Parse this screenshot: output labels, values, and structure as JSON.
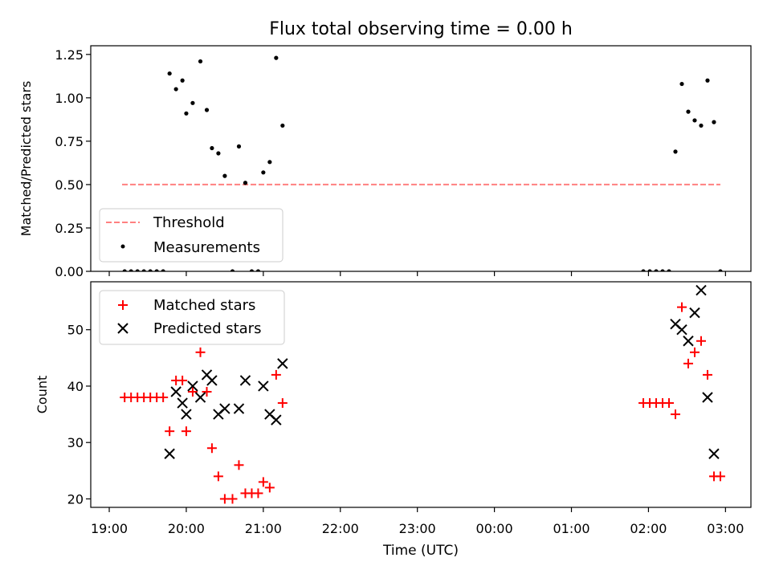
{
  "title": "Flux total observing time = 0.00 h",
  "xlabel": "Time (UTC)",
  "x_ticks": [
    "19:00",
    "20:00",
    "21:00",
    "22:00",
    "23:00",
    "00:00",
    "01:00",
    "02:00",
    "03:00"
  ],
  "chart_data": [
    {
      "type": "scatter",
      "ylabel": "Matched/Predicted stars",
      "ylim": [
        0,
        1.3
      ],
      "y_ticks": [
        "0.00",
        "0.25",
        "0.50",
        "0.75",
        "1.00",
        "1.25"
      ],
      "legend_position": "lower-left",
      "threshold": {
        "name": "Threshold",
        "value": 0.5,
        "x_start": "19:10",
        "x_end": "02:56",
        "color": "#ff8080"
      },
      "series": [
        {
          "name": "Measurements",
          "color": "#000000",
          "marker": "dot",
          "points": [
            [
              "19:12",
              0.0
            ],
            [
              "19:17",
              0.0
            ],
            [
              "19:22",
              0.0
            ],
            [
              "19:27",
              0.0
            ],
            [
              "19:32",
              0.0
            ],
            [
              "19:37",
              0.0
            ],
            [
              "19:42",
              0.0
            ],
            [
              "19:47",
              1.14
            ],
            [
              "19:52",
              1.05
            ],
            [
              "19:57",
              1.1
            ],
            [
              "20:00",
              0.91
            ],
            [
              "20:05",
              0.97
            ],
            [
              "20:11",
              1.21
            ],
            [
              "20:16",
              0.93
            ],
            [
              "20:20",
              0.71
            ],
            [
              "20:25",
              0.68
            ],
            [
              "20:30",
              0.55
            ],
            [
              "20:36",
              0.0
            ],
            [
              "20:41",
              0.72
            ],
            [
              "20:46",
              0.51
            ],
            [
              "20:51",
              0.0
            ],
            [
              "20:56",
              0.0
            ],
            [
              "21:00",
              0.57
            ],
            [
              "21:05",
              0.63
            ],
            [
              "21:10",
              1.23
            ],
            [
              "21:15",
              0.84
            ],
            [
              "01:56",
              0.0
            ],
            [
              "02:01",
              0.0
            ],
            [
              "02:06",
              0.0
            ],
            [
              "02:11",
              0.0
            ],
            [
              "02:16",
              0.0
            ],
            [
              "02:21",
              0.69
            ],
            [
              "02:26",
              1.08
            ],
            [
              "02:31",
              0.92
            ],
            [
              "02:36",
              0.87
            ],
            [
              "02:41",
              0.84
            ],
            [
              "02:46",
              1.1
            ],
            [
              "02:51",
              0.86
            ],
            [
              "02:56",
              0.0
            ]
          ]
        }
      ]
    },
    {
      "type": "scatter",
      "ylabel": "Count",
      "ylim": [
        18.5,
        58.5
      ],
      "y_ticks": [
        "20",
        "30",
        "40",
        "50"
      ],
      "legend_position": "upper-left",
      "series": [
        {
          "name": "Matched stars",
          "color": "#ff0000",
          "marker": "plus",
          "points": [
            [
              "19:12",
              38
            ],
            [
              "19:17",
              38
            ],
            [
              "19:22",
              38
            ],
            [
              "19:27",
              38
            ],
            [
              "19:32",
              38
            ],
            [
              "19:37",
              38
            ],
            [
              "19:42",
              38
            ],
            [
              "19:47",
              32
            ],
            [
              "19:52",
              41
            ],
            [
              "19:57",
              41
            ],
            [
              "20:00",
              32
            ],
            [
              "20:05",
              39
            ],
            [
              "20:11",
              46
            ],
            [
              "20:16",
              39
            ],
            [
              "20:20",
              29
            ],
            [
              "20:25",
              24
            ],
            [
              "20:30",
              20
            ],
            [
              "20:36",
              20
            ],
            [
              "20:41",
              26
            ],
            [
              "20:46",
              21
            ],
            [
              "20:51",
              21
            ],
            [
              "20:56",
              21
            ],
            [
              "21:00",
              23
            ],
            [
              "21:05",
              22
            ],
            [
              "21:10",
              42
            ],
            [
              "21:15",
              37
            ],
            [
              "01:56",
              37
            ],
            [
              "02:01",
              37
            ],
            [
              "02:06",
              37
            ],
            [
              "02:11",
              37
            ],
            [
              "02:16",
              37
            ],
            [
              "02:21",
              35
            ],
            [
              "02:26",
              54
            ],
            [
              "02:31",
              44
            ],
            [
              "02:36",
              46
            ],
            [
              "02:41",
              48
            ],
            [
              "02:46",
              42
            ],
            [
              "02:51",
              24
            ],
            [
              "02:56",
              24
            ]
          ]
        },
        {
          "name": "Predicted stars",
          "color": "#000000",
          "marker": "x",
          "points": [
            [
              "19:47",
              28
            ],
            [
              "19:52",
              39
            ],
            [
              "19:57",
              37
            ],
            [
              "20:00",
              35
            ],
            [
              "20:05",
              40
            ],
            [
              "20:11",
              38
            ],
            [
              "20:16",
              42
            ],
            [
              "20:20",
              41
            ],
            [
              "20:25",
              35
            ],
            [
              "20:30",
              36
            ],
            [
              "20:41",
              36
            ],
            [
              "20:46",
              41
            ],
            [
              "21:00",
              40
            ],
            [
              "21:05",
              35
            ],
            [
              "21:10",
              34
            ],
            [
              "21:15",
              44
            ],
            [
              "02:21",
              51
            ],
            [
              "02:26",
              50
            ],
            [
              "02:31",
              48
            ],
            [
              "02:36",
              53
            ],
            [
              "02:41",
              57
            ],
            [
              "02:46",
              38
            ],
            [
              "02:51",
              28
            ]
          ]
        }
      ]
    }
  ]
}
